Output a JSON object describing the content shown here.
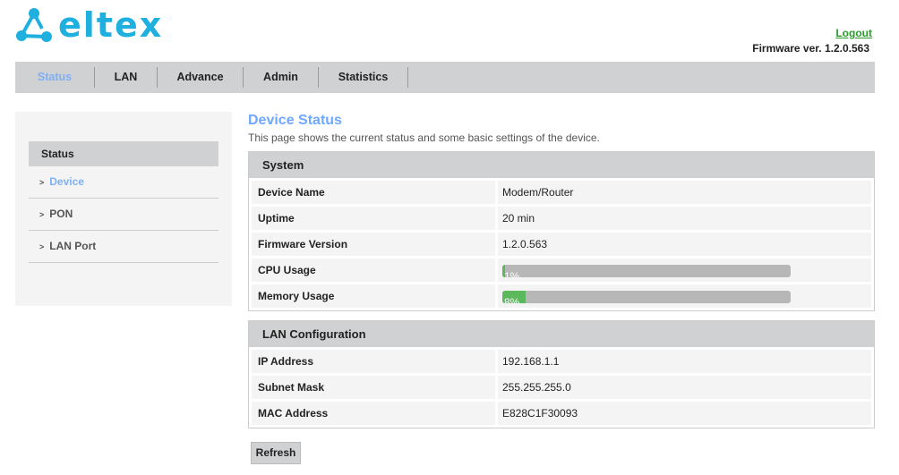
{
  "header": {
    "brand": "ELTEX",
    "logout": "Logout",
    "firmware": "Firmware ver. 1.2.0.563",
    "brand_color": "#1fb0e0"
  },
  "nav": [
    {
      "label": "Status",
      "active": true
    },
    {
      "label": "LAN"
    },
    {
      "label": "Advance"
    },
    {
      "label": "Admin"
    },
    {
      "label": "Statistics"
    }
  ],
  "sidebar": {
    "heading": "Status",
    "items": [
      {
        "label": "Device",
        "active": true
      },
      {
        "label": "PON"
      },
      {
        "label": "LAN Port"
      }
    ]
  },
  "main": {
    "title": "Device Status",
    "description": "This page shows the current status and some basic settings of the device.",
    "system": {
      "heading": "System",
      "rows": [
        {
          "label": "Device Name",
          "value": "Modem/Router"
        },
        {
          "label": "Uptime",
          "value": "20 min"
        },
        {
          "label": "Firmware Version",
          "value": "1.2.0.563"
        }
      ],
      "cpu": {
        "label": "CPU Usage",
        "value": "1%",
        "percent": 1
      },
      "memory": {
        "label": "Memory Usage",
        "value": "8%",
        "percent": 8
      }
    },
    "lan": {
      "heading": "LAN Configuration",
      "rows": [
        {
          "label": "IP Address",
          "value": "192.168.1.1"
        },
        {
          "label": "Subnet Mask",
          "value": "255.255.255.0"
        },
        {
          "label": "MAC Address",
          "value": "E828C1F30093"
        }
      ]
    },
    "refresh": "Refresh"
  }
}
